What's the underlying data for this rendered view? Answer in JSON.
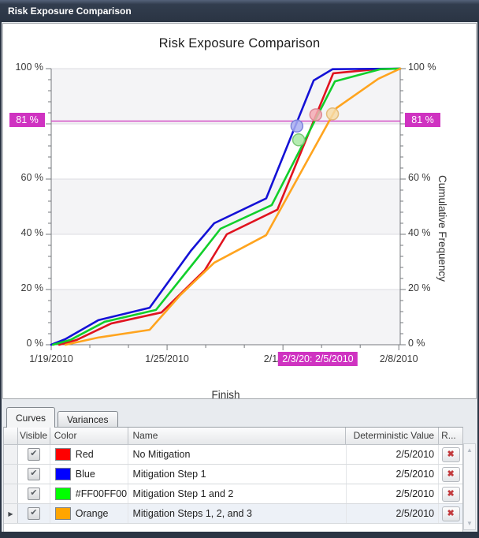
{
  "window": {
    "title": "Risk Exposure Comparison"
  },
  "chart_data": {
    "type": "line",
    "title": "Risk Exposure Comparison",
    "xlabel": "Finish",
    "ylabel": "Cumulative Frequency",
    "ylim": [
      0,
      100
    ],
    "grid": "horizontal",
    "bands_pct": [
      [
        80,
        100
      ],
      [
        40,
        60
      ],
      [
        0,
        20
      ]
    ],
    "y_ticks": [
      {
        "label": "100 %",
        "value": 100
      },
      {
        "label": "60 %",
        "value": 60
      },
      {
        "label": "40 %",
        "value": 40
      },
      {
        "label": "20 %",
        "value": 20
      },
      {
        "label": "0 %",
        "value": 0
      }
    ],
    "x_ticks": [
      {
        "label": "1/19/2010",
        "f": 0.0
      },
      {
        "label": "1/25/2010",
        "f": 0.332
      },
      {
        "label": "2/1/2010",
        "f": 0.664
      },
      {
        "label": "2/8/2010",
        "f": 0.996
      }
    ],
    "crosshair": {
      "y_value": 81,
      "y_label": "81 %",
      "x_label": "2/3/20: 2/5/2010",
      "x_center_f": 0.764,
      "color": "#cf33c1"
    },
    "series": [
      {
        "name": "No Mitigation",
        "color": "#e0131f",
        "points": [
          [
            0.023,
            0
          ],
          [
            0.074,
            1.8
          ],
          [
            0.172,
            7.7
          ],
          [
            0.316,
            11.7
          ],
          [
            0.44,
            27
          ],
          [
            0.503,
            40
          ],
          [
            0.648,
            48.9
          ],
          [
            0.808,
            98.3
          ],
          [
            0.932,
            99.8
          ],
          [
            1,
            100
          ]
        ]
      },
      {
        "name": "Mitigation Step 1",
        "color": "#1411d6",
        "points": [
          [
            0,
            0
          ],
          [
            0.04,
            2
          ],
          [
            0.135,
            8.9
          ],
          [
            0.282,
            13.4
          ],
          [
            0.4,
            34
          ],
          [
            0.467,
            44
          ],
          [
            0.616,
            53
          ],
          [
            0.752,
            95.7
          ],
          [
            0.806,
            99.8
          ],
          [
            1,
            100
          ]
        ]
      },
      {
        "name": "Mitigation Step 1 and 2",
        "color": "#11cf2b",
        "points": [
          [
            0.005,
            0
          ],
          [
            0.056,
            1.8
          ],
          [
            0.153,
            8.3
          ],
          [
            0.3,
            12.6
          ],
          [
            0.42,
            31.5
          ],
          [
            0.485,
            42
          ],
          [
            0.632,
            50.6
          ],
          [
            0.813,
            95.4
          ],
          [
            0.943,
            99.8
          ],
          [
            1,
            100
          ]
        ]
      },
      {
        "name": "Mitigation Steps 1, 2, and 3",
        "color": "#ffa41e",
        "points": [
          [
            0.041,
            0
          ],
          [
            0.135,
            2.6
          ],
          [
            0.282,
            5.4
          ],
          [
            0.37,
            18
          ],
          [
            0.467,
            29.7
          ],
          [
            0.616,
            39.7
          ],
          [
            0.817,
            85.7
          ],
          [
            0.937,
            96.3
          ],
          [
            1,
            100
          ]
        ]
      }
    ],
    "markers": [
      {
        "series": "Mitigation Step 1",
        "f": 0.704,
        "pct": 79.2,
        "fill": "#a9aff1",
        "stroke": "#7d84da"
      },
      {
        "series": "Mitigation Step 1 and 2",
        "f": 0.709,
        "pct": 74.2,
        "fill": "#a9e9a4",
        "stroke": "#7cc878"
      },
      {
        "series": "No Mitigation",
        "f": 0.758,
        "pct": 83.3,
        "fill": "#f3aab4",
        "stroke": "#dd8896"
      },
      {
        "series": "Mitigation Steps 1, 2, and 3",
        "f": 0.806,
        "pct": 83.6,
        "fill": "#f6daa7",
        "stroke": "#e3bc7c"
      }
    ]
  },
  "panel": {
    "tabs": [
      {
        "label": "Curves",
        "active": true
      },
      {
        "label": "Variances",
        "active": false
      }
    ],
    "table": {
      "headers": {
        "visible": "Visible",
        "color": "Color",
        "name": "Name",
        "deterministic": "Deterministic Value",
        "remove": "R..."
      },
      "rows": [
        {
          "visible": true,
          "color": "#ff0000",
          "color_name": "Red",
          "name": "No Mitigation",
          "deterministic_value": "2/5/2010",
          "selected": false
        },
        {
          "visible": true,
          "color": "#0000ff",
          "color_name": "Blue",
          "name": "Mitigation Step 1",
          "deterministic_value": "2/5/2010",
          "selected": false
        },
        {
          "visible": true,
          "color": "#00ff00",
          "color_name": "#FF00FF00",
          "name": "Mitigation Step 1 and 2",
          "deterministic_value": "2/5/2010",
          "selected": false
        },
        {
          "visible": true,
          "color": "#ffa500",
          "color_name": "Orange",
          "name": "Mitigation Steps 1, 2, and 3",
          "deterministic_value": "2/5/2010",
          "selected": true
        }
      ]
    }
  },
  "colors": {
    "accent_magenta": "#cf33c1",
    "titlebar": "#2a3443",
    "band_gray": "#f4f4f6"
  }
}
